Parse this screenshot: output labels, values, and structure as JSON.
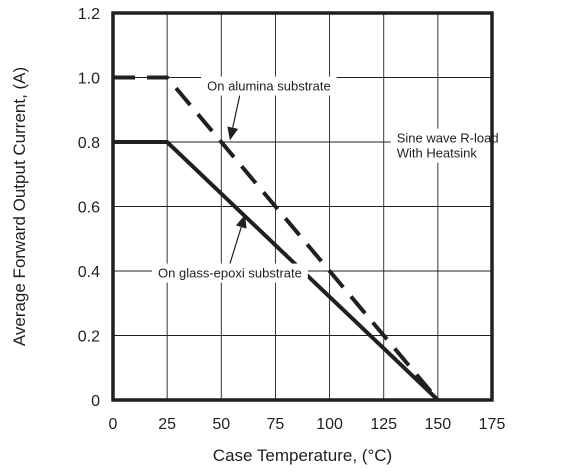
{
  "chart_data": {
    "type": "line",
    "xlabel": "Case Temperature, (°C)",
    "ylabel": "Average Forward Output Current, (A)",
    "xlim": [
      0,
      175
    ],
    "ylim": [
      0,
      1.2
    ],
    "x_ticks": [
      "0",
      "25",
      "50",
      "75",
      "100",
      "125",
      "150",
      "175"
    ],
    "y_ticks": [
      "0",
      "0.2",
      "0.4",
      "0.6",
      "0.8",
      "1.0",
      "1.2"
    ],
    "grid": true,
    "legend": "none",
    "series": [
      {
        "name": "On alumina substrate",
        "style": "dashed",
        "color": "#231f20",
        "points": [
          [
            0,
            1.0
          ],
          [
            25,
            1.0
          ],
          [
            150,
            0.0
          ]
        ]
      },
      {
        "name": "On glass-epoxi substrate",
        "style": "solid",
        "color": "#231f20",
        "points": [
          [
            0,
            0.8
          ],
          [
            25,
            0.8
          ],
          [
            150,
            0.0
          ]
        ]
      }
    ],
    "annotations": [
      {
        "lines": [
          "On alumina substrate"
        ],
        "x": 72,
        "y": 0.975,
        "align": "middle",
        "arrow_to": [
          54,
          0.805
        ]
      },
      {
        "lines": [
          "Sine wave R-load",
          "With Heatsink"
        ],
        "x": 131,
        "y": 0.79,
        "align": "start"
      },
      {
        "lines": [
          "On glass-epoxi substrate"
        ],
        "x": 54,
        "y": 0.395,
        "align": "middle",
        "arrow_to": [
          61,
          0.575
        ]
      }
    ]
  }
}
